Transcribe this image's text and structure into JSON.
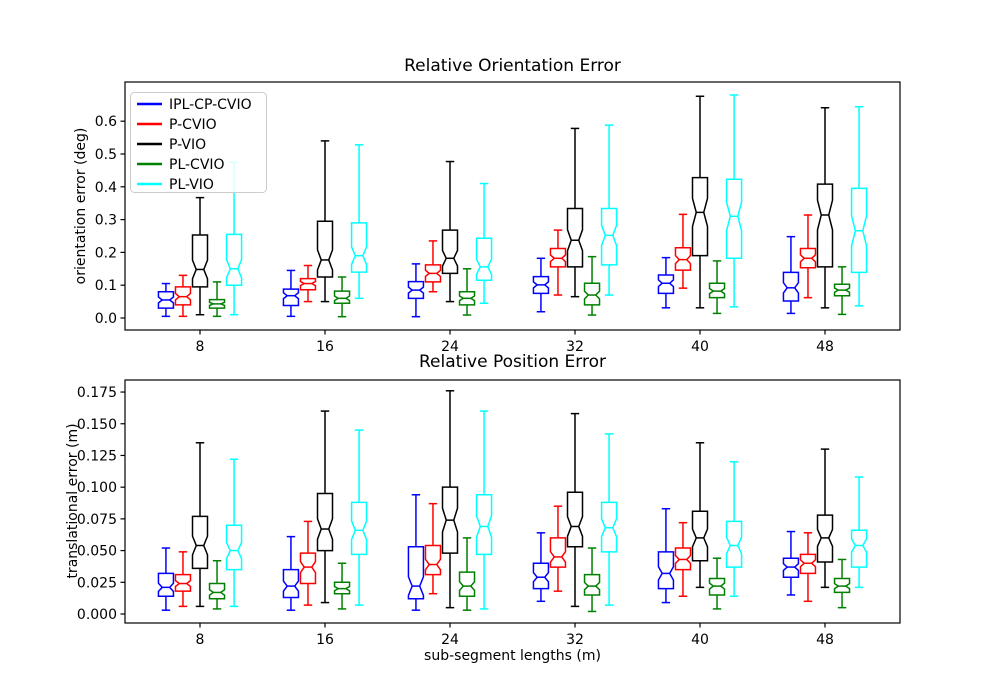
{
  "figure": {
    "background": "#ffffff"
  },
  "legend": {
    "entries": [
      {
        "label": "IPL-CP-CVIO",
        "color": "#0000ff"
      },
      {
        "label": "P-CVIO",
        "color": "#ff0000"
      },
      {
        "label": "P-VIO",
        "color": "#000000"
      },
      {
        "label": "PL-CVIO",
        "color": "#008000"
      },
      {
        "label": "PL-VIO",
        "color": "#00ffff"
      }
    ]
  },
  "chart_data": [
    {
      "type": "boxplot",
      "title": "Relative Orientation Error",
      "ylabel": "orientation error (deg)",
      "xlabel": "",
      "categories": [
        8,
        16,
        24,
        32,
        40,
        48
      ],
      "xticklabels": [
        "8",
        "16",
        "24",
        "32",
        "40",
        "48"
      ],
      "yticks": [
        0.0,
        0.1,
        0.2,
        0.3,
        0.4,
        0.5,
        0.6
      ],
      "yticklabels": [
        "0.0",
        "0.1",
        "0.2",
        "0.3",
        "0.4",
        "0.5",
        "0.6"
      ],
      "xlim": [
        3.2,
        52.8
      ],
      "ylim": [
        -0.0366,
        0.7195
      ],
      "grid": false,
      "legend_position": "upper left",
      "series": [
        {
          "name": "IPL-CP-CVIO",
          "color": "#0000ff",
          "offset": -2.18,
          "boxes": [
            {
              "whislo": 0.005,
              "q1": 0.03,
              "med": 0.055,
              "q3": 0.08,
              "whishi": 0.105
            },
            {
              "whislo": 0.005,
              "q1": 0.038,
              "med": 0.068,
              "q3": 0.088,
              "whishi": 0.145
            },
            {
              "whislo": 0.004,
              "q1": 0.06,
              "med": 0.085,
              "q3": 0.111,
              "whishi": 0.165
            },
            {
              "whislo": 0.019,
              "q1": 0.075,
              "med": 0.101,
              "q3": 0.126,
              "whishi": 0.182
            },
            {
              "whislo": 0.031,
              "q1": 0.075,
              "med": 0.106,
              "q3": 0.131,
              "whishi": 0.184
            },
            {
              "whislo": 0.014,
              "q1": 0.052,
              "med": 0.092,
              "q3": 0.139,
              "whishi": 0.248
            }
          ]
        },
        {
          "name": "P-CVIO",
          "color": "#ff0000",
          "offset": -1.09,
          "boxes": [
            {
              "whislo": 0.005,
              "q1": 0.04,
              "med": 0.065,
              "q3": 0.095,
              "whishi": 0.13
            },
            {
              "whislo": 0.05,
              "q1": 0.086,
              "med": 0.105,
              "q3": 0.12,
              "whishi": 0.16
            },
            {
              "whislo": 0.08,
              "q1": 0.11,
              "med": 0.136,
              "q3": 0.162,
              "whishi": 0.235
            },
            {
              "whislo": 0.07,
              "q1": 0.156,
              "med": 0.182,
              "q3": 0.212,
              "whishi": 0.268
            },
            {
              "whislo": 0.091,
              "q1": 0.146,
              "med": 0.178,
              "q3": 0.214,
              "whishi": 0.316
            },
            {
              "whislo": 0.062,
              "q1": 0.153,
              "med": 0.182,
              "q3": 0.212,
              "whishi": 0.314
            }
          ]
        },
        {
          "name": "P-VIO",
          "color": "#000000",
          "offset": 0,
          "boxes": [
            {
              "whislo": 0.01,
              "q1": 0.095,
              "med": 0.148,
              "q3": 0.253,
              "whishi": 0.367
            },
            {
              "whislo": 0.05,
              "q1": 0.125,
              "med": 0.177,
              "q3": 0.295,
              "whishi": 0.54
            },
            {
              "whislo": 0.05,
              "q1": 0.136,
              "med": 0.182,
              "q3": 0.268,
              "whishi": 0.477
            },
            {
              "whislo": 0.065,
              "q1": 0.156,
              "med": 0.237,
              "q3": 0.334,
              "whishi": 0.578
            },
            {
              "whislo": 0.031,
              "q1": 0.19,
              "med": 0.322,
              "q3": 0.428,
              "whishi": 0.676
            },
            {
              "whislo": 0.031,
              "q1": 0.156,
              "med": 0.314,
              "q3": 0.408,
              "whishi": 0.641
            }
          ]
        },
        {
          "name": "PL-CVIO",
          "color": "#008000",
          "offset": 1.09,
          "boxes": [
            {
              "whislo": 0.005,
              "q1": 0.03,
              "med": 0.043,
              "q3": 0.056,
              "whishi": 0.11
            },
            {
              "whislo": 0.004,
              "q1": 0.045,
              "med": 0.06,
              "q3": 0.082,
              "whishi": 0.125
            },
            {
              "whislo": 0.009,
              "q1": 0.04,
              "med": 0.06,
              "q3": 0.08,
              "whishi": 0.15
            },
            {
              "whislo": 0.009,
              "q1": 0.04,
              "med": 0.07,
              "q3": 0.106,
              "whishi": 0.187
            },
            {
              "whislo": 0.014,
              "q1": 0.062,
              "med": 0.082,
              "q3": 0.106,
              "whishi": 0.174
            },
            {
              "whislo": 0.011,
              "q1": 0.068,
              "med": 0.085,
              "q3": 0.103,
              "whishi": 0.156
            }
          ]
        },
        {
          "name": "PL-VIO",
          "color": "#00ffff",
          "offset": 2.18,
          "boxes": [
            {
              "whislo": 0.01,
              "q1": 0.1,
              "med": 0.15,
              "q3": 0.255,
              "whishi": 0.475
            },
            {
              "whislo": 0.06,
              "q1": 0.14,
              "med": 0.19,
              "q3": 0.29,
              "whishi": 0.528
            },
            {
              "whislo": 0.045,
              "q1": 0.115,
              "med": 0.156,
              "q3": 0.243,
              "whishi": 0.41
            },
            {
              "whislo": 0.07,
              "q1": 0.162,
              "med": 0.252,
              "q3": 0.334,
              "whishi": 0.588
            },
            {
              "whislo": 0.034,
              "q1": 0.182,
              "med": 0.31,
              "q3": 0.423,
              "whishi": 0.68
            },
            {
              "whislo": 0.037,
              "q1": 0.139,
              "med": 0.266,
              "q3": 0.395,
              "whishi": 0.644
            }
          ]
        }
      ]
    },
    {
      "type": "boxplot",
      "title": "Relative Position Error",
      "ylabel": "translational error (m)",
      "xlabel": "sub-segment lengths (m)",
      "categories": [
        8,
        16,
        24,
        32,
        40,
        48
      ],
      "xticklabels": [
        "8",
        "16",
        "24",
        "32",
        "40",
        "48"
      ],
      "yticks": [
        0.0,
        0.025,
        0.05,
        0.075,
        0.1,
        0.125,
        0.15,
        0.175
      ],
      "yticklabels": [
        "0.000",
        "0.025",
        "0.050",
        "0.075",
        "0.100",
        "0.125",
        "0.150",
        "0.175"
      ],
      "xlim": [
        3.2,
        52.8
      ],
      "ylim": [
        -0.0071,
        0.1845
      ],
      "grid": false,
      "legend_position": "none",
      "series": [
        {
          "name": "IPL-CP-CVIO",
          "color": "#0000ff",
          "offset": -2.18,
          "boxes": [
            {
              "whislo": 0.003,
              "q1": 0.014,
              "med": 0.021,
              "q3": 0.032,
              "whishi": 0.052
            },
            {
              "whislo": 0.003,
              "q1": 0.013,
              "med": 0.022,
              "q3": 0.035,
              "whishi": 0.061
            },
            {
              "whislo": 0.003,
              "q1": 0.012,
              "med": 0.022,
              "q3": 0.053,
              "whishi": 0.094
            },
            {
              "whislo": 0.01,
              "q1": 0.02,
              "med": 0.029,
              "q3": 0.04,
              "whishi": 0.064
            },
            {
              "whislo": 0.009,
              "q1": 0.02,
              "med": 0.032,
              "q3": 0.049,
              "whishi": 0.083
            },
            {
              "whislo": 0.015,
              "q1": 0.029,
              "med": 0.037,
              "q3": 0.044,
              "whishi": 0.065
            }
          ]
        },
        {
          "name": "P-CVIO",
          "color": "#ff0000",
          "offset": -1.09,
          "boxes": [
            {
              "whislo": 0.006,
              "q1": 0.018,
              "med": 0.024,
              "q3": 0.031,
              "whishi": 0.049
            },
            {
              "whislo": 0.007,
              "q1": 0.024,
              "med": 0.037,
              "q3": 0.048,
              "whishi": 0.073
            },
            {
              "whislo": 0.016,
              "q1": 0.031,
              "med": 0.039,
              "q3": 0.054,
              "whishi": 0.087
            },
            {
              "whislo": 0.018,
              "q1": 0.037,
              "med": 0.045,
              "q3": 0.06,
              "whishi": 0.085
            },
            {
              "whislo": 0.014,
              "q1": 0.035,
              "med": 0.043,
              "q3": 0.052,
              "whishi": 0.072
            },
            {
              "whislo": 0.01,
              "q1": 0.032,
              "med": 0.04,
              "q3": 0.047,
              "whishi": 0.064
            }
          ]
        },
        {
          "name": "P-VIO",
          "color": "#000000",
          "offset": 0,
          "boxes": [
            {
              "whislo": 0.006,
              "q1": 0.036,
              "med": 0.054,
              "q3": 0.077,
              "whishi": 0.135
            },
            {
              "whislo": 0.009,
              "q1": 0.05,
              "med": 0.067,
              "q3": 0.095,
              "whishi": 0.16
            },
            {
              "whislo": 0.005,
              "q1": 0.048,
              "med": 0.074,
              "q3": 0.1,
              "whishi": 0.176
            },
            {
              "whislo": 0.006,
              "q1": 0.053,
              "med": 0.069,
              "q3": 0.096,
              "whishi": 0.158
            },
            {
              "whislo": 0.021,
              "q1": 0.042,
              "med": 0.06,
              "q3": 0.081,
              "whishi": 0.135
            },
            {
              "whislo": 0.021,
              "q1": 0.041,
              "med": 0.06,
              "q3": 0.078,
              "whishi": 0.13
            }
          ]
        },
        {
          "name": "PL-CVIO",
          "color": "#008000",
          "offset": 1.09,
          "boxes": [
            {
              "whislo": 0.004,
              "q1": 0.012,
              "med": 0.017,
              "q3": 0.024,
              "whishi": 0.042
            },
            {
              "whislo": 0.004,
              "q1": 0.016,
              "med": 0.02,
              "q3": 0.025,
              "whishi": 0.04
            },
            {
              "whislo": 0.003,
              "q1": 0.014,
              "med": 0.022,
              "q3": 0.033,
              "whishi": 0.06
            },
            {
              "whislo": 0.002,
              "q1": 0.015,
              "med": 0.022,
              "q3": 0.031,
              "whishi": 0.052
            },
            {
              "whislo": 0.004,
              "q1": 0.015,
              "med": 0.022,
              "q3": 0.028,
              "whishi": 0.044
            },
            {
              "whislo": 0.005,
              "q1": 0.017,
              "med": 0.022,
              "q3": 0.028,
              "whishi": 0.043
            }
          ]
        },
        {
          "name": "PL-VIO",
          "color": "#00ffff",
          "offset": 2.18,
          "boxes": [
            {
              "whislo": 0.006,
              "q1": 0.035,
              "med": 0.05,
              "q3": 0.07,
              "whishi": 0.122
            },
            {
              "whislo": 0.007,
              "q1": 0.047,
              "med": 0.066,
              "q3": 0.088,
              "whishi": 0.145
            },
            {
              "whislo": 0.004,
              "q1": 0.047,
              "med": 0.069,
              "q3": 0.094,
              "whishi": 0.16
            },
            {
              "whislo": 0.007,
              "q1": 0.049,
              "med": 0.068,
              "q3": 0.088,
              "whishi": 0.142
            },
            {
              "whislo": 0.014,
              "q1": 0.037,
              "med": 0.054,
              "q3": 0.073,
              "whishi": 0.12
            },
            {
              "whislo": 0.021,
              "q1": 0.037,
              "med": 0.054,
              "q3": 0.066,
              "whishi": 0.108
            }
          ]
        }
      ]
    }
  ]
}
